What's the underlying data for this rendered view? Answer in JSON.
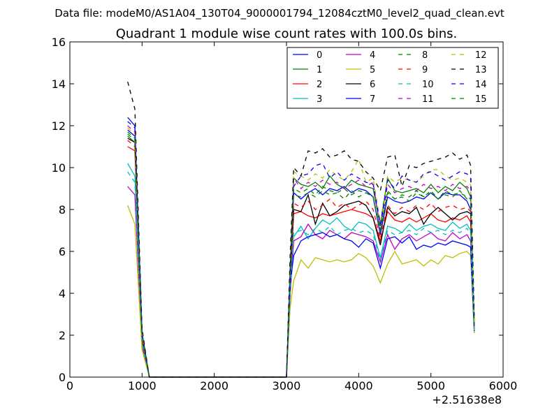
{
  "figure": {
    "suptitle": "Data file: modeM0/AS1A04_130T04_9000001794_12084cztM0_level2_quad_clean.evt"
  },
  "chart_data": {
    "type": "line",
    "title": "Quadrant 1 module wise count rates with 100.0s bins.",
    "xlabel": "",
    "ylabel": "",
    "x_offset_label": "+2.51638e8",
    "xlim": [
      0,
      6000
    ],
    "ylim": [
      0,
      16
    ],
    "xticks": [
      0,
      1000,
      2000,
      3000,
      4000,
      5000,
      6000
    ],
    "yticks": [
      0,
      2,
      4,
      6,
      8,
      10,
      12,
      14,
      16
    ],
    "grid": false,
    "legend": {
      "placement": "top-right",
      "columns": 4
    },
    "x": [
      800,
      900,
      1000,
      1100,
      1200,
      1300,
      1400,
      1500,
      1600,
      1700,
      1800,
      1900,
      2000,
      2100,
      2200,
      2300,
      2400,
      2500,
      2600,
      2700,
      2800,
      2900,
      3000,
      3050,
      3100,
      3200,
      3300,
      3400,
      3500,
      3600,
      3700,
      3800,
      3900,
      4000,
      4100,
      4200,
      4300,
      4400,
      4500,
      4600,
      4700,
      4800,
      4900,
      5000,
      5100,
      5200,
      5300,
      5400,
      5500,
      5550,
      5600
    ],
    "series": [
      {
        "name": "0",
        "color": "#0000ff",
        "dash": "solid",
        "values": [
          11.8,
          11.5,
          2.0,
          0,
          0,
          0,
          0,
          0,
          0,
          0,
          0,
          0,
          0,
          0,
          0,
          0,
          0,
          0,
          0,
          0,
          0,
          0,
          0,
          4.8,
          8.8,
          8.5,
          8.8,
          9.0,
          8.7,
          9.0,
          8.9,
          9.1,
          8.8,
          9.0,
          8.9,
          8.6,
          6.8,
          8.6,
          8.4,
          8.3,
          8.4,
          8.6,
          8.5,
          8.8,
          8.5,
          8.8,
          8.7,
          8.7,
          8.4,
          8.0,
          2.5
        ]
      },
      {
        "name": "1",
        "color": "#008000",
        "dash": "solid",
        "values": [
          11.5,
          11.2,
          2.0,
          0,
          0,
          0,
          0,
          0,
          0,
          0,
          0,
          0,
          0,
          0,
          0,
          0,
          0,
          0,
          0,
          0,
          0,
          0,
          0,
          5.0,
          9.5,
          9.2,
          9.1,
          9.3,
          9.0,
          9.6,
          9.2,
          9.0,
          9.4,
          9.2,
          9.1,
          9.0,
          7.2,
          9.5,
          8.9,
          8.8,
          8.9,
          9.0,
          8.8,
          9.2,
          8.8,
          9.1,
          8.9,
          9.3,
          9.0,
          8.6,
          2.6
        ]
      },
      {
        "name": "2",
        "color": "#ff0000",
        "dash": "solid",
        "values": [
          11.0,
          10.8,
          1.8,
          0,
          0,
          0,
          0,
          0,
          0,
          0,
          0,
          0,
          0,
          0,
          0,
          0,
          0,
          0,
          0,
          0,
          0,
          0,
          0,
          4.6,
          7.8,
          7.9,
          7.7,
          7.6,
          7.8,
          7.7,
          7.8,
          7.9,
          8.0,
          7.9,
          7.8,
          7.6,
          6.5,
          7.9,
          7.5,
          7.4,
          7.6,
          7.4,
          7.6,
          7.8,
          7.5,
          7.4,
          7.6,
          7.5,
          7.7,
          7.4,
          2.3
        ]
      },
      {
        "name": "3",
        "color": "#00bfbf",
        "dash": "solid",
        "values": [
          10.2,
          9.6,
          1.6,
          0,
          0,
          0,
          0,
          0,
          0,
          0,
          0,
          0,
          0,
          0,
          0,
          0,
          0,
          0,
          0,
          0,
          0,
          0,
          0,
          4.2,
          6.7,
          7.2,
          6.6,
          7.1,
          7.5,
          7.3,
          7.6,
          7.2,
          7.0,
          7.4,
          7.3,
          7.0,
          5.7,
          7.2,
          7.1,
          6.9,
          7.3,
          7.0,
          7.2,
          7.3,
          7.1,
          7.0,
          7.4,
          7.1,
          7.3,
          7.0,
          2.2
        ]
      },
      {
        "name": "4",
        "color": "#bf00bf",
        "dash": "solid",
        "values": [
          9.1,
          8.7,
          1.5,
          0,
          0,
          0,
          0,
          0,
          0,
          0,
          0,
          0,
          0,
          0,
          0,
          0,
          0,
          0,
          0,
          0,
          0,
          0,
          0,
          3.9,
          6.5,
          6.7,
          7.3,
          6.8,
          6.6,
          7.0,
          6.8,
          6.6,
          6.9,
          6.8,
          6.7,
          6.5,
          5.5,
          6.8,
          6.1,
          6.6,
          6.8,
          6.5,
          6.7,
          6.9,
          6.6,
          6.5,
          6.9,
          6.6,
          6.8,
          6.5,
          2.1
        ]
      },
      {
        "name": "5",
        "color": "#bfbf00",
        "dash": "solid",
        "values": [
          8.2,
          7.3,
          1.3,
          0,
          0,
          0,
          0,
          0,
          0,
          0,
          0,
          0,
          0,
          0,
          0,
          0,
          0,
          0,
          0,
          0,
          0,
          0,
          0,
          3.3,
          4.6,
          5.6,
          5.2,
          5.7,
          5.6,
          5.5,
          5.6,
          5.5,
          5.6,
          5.9,
          5.7,
          5.3,
          4.5,
          5.4,
          6.0,
          5.4,
          5.5,
          5.6,
          5.3,
          5.6,
          5.4,
          5.8,
          5.7,
          5.9,
          6.0,
          5.8,
          2.1
        ]
      },
      {
        "name": "6",
        "color": "#000000",
        "dash": "solid",
        "values": [
          11.4,
          11.2,
          1.9,
          0,
          0,
          0,
          0,
          0,
          0,
          0,
          0,
          0,
          0,
          0,
          0,
          0,
          0,
          0,
          0,
          0,
          0,
          0,
          0,
          4.7,
          8.0,
          7.9,
          8.7,
          7.3,
          8.3,
          7.7,
          7.9,
          8.2,
          8.3,
          8.4,
          8.2,
          7.6,
          6.3,
          8.1,
          7.7,
          7.9,
          7.8,
          8.1,
          7.3,
          7.8,
          8.1,
          7.8,
          7.5,
          7.8,
          7.9,
          7.8,
          2.4
        ]
      },
      {
        "name": "7",
        "color": "#0000ff",
        "dash": "solid",
        "values": [
          12.4,
          12.0,
          2.1,
          0,
          0,
          0,
          0,
          0,
          0,
          0,
          0,
          0,
          0,
          0,
          0,
          0,
          0,
          0,
          0,
          0,
          0,
          0,
          0,
          4.4,
          5.8,
          6.5,
          6.7,
          6.8,
          6.9,
          6.7,
          6.8,
          6.6,
          6.5,
          6.2,
          6.6,
          6.4,
          5.2,
          6.6,
          6.7,
          6.4,
          6.7,
          6.1,
          6.3,
          6.2,
          6.4,
          6.3,
          6.5,
          6.4,
          6.3,
          6.2,
          2.2
        ]
      },
      {
        "name": "8",
        "color": "#008000",
        "dash": "dashed",
        "values": [
          11.6,
          11.3,
          2.0,
          0,
          0,
          0,
          0,
          0,
          0,
          0,
          0,
          0,
          0,
          0,
          0,
          0,
          0,
          0,
          0,
          0,
          0,
          0,
          0,
          4.9,
          8.7,
          8.6,
          8.8,
          8.6,
          8.9,
          8.7,
          8.8,
          8.5,
          8.9,
          8.6,
          8.8,
          8.6,
          6.9,
          8.8,
          8.5,
          8.6,
          8.4,
          8.8,
          8.6,
          8.9,
          8.5,
          8.7,
          8.6,
          8.9,
          8.5,
          8.4,
          2.5
        ]
      },
      {
        "name": "9",
        "color": "#ff0000",
        "dash": "dashed",
        "values": [
          11.3,
          11.0,
          1.9,
          0,
          0,
          0,
          0,
          0,
          0,
          0,
          0,
          0,
          0,
          0,
          0,
          0,
          0,
          0,
          0,
          0,
          0,
          0,
          0,
          4.7,
          8.3,
          8.1,
          8.4,
          8.0,
          8.2,
          8.5,
          8.1,
          8.3,
          8.0,
          8.2,
          8.4,
          8.0,
          6.6,
          8.2,
          7.8,
          8.1,
          7.9,
          8.2,
          8.0,
          8.3,
          7.9,
          8.1,
          8.2,
          8.0,
          8.1,
          7.9,
          2.4
        ]
      },
      {
        "name": "10",
        "color": "#00bfbf",
        "dash": "dashed",
        "values": [
          9.8,
          9.3,
          1.6,
          0,
          0,
          0,
          0,
          0,
          0,
          0,
          0,
          0,
          0,
          0,
          0,
          0,
          0,
          0,
          0,
          0,
          0,
          0,
          0,
          4.0,
          6.9,
          7.0,
          6.8,
          7.1,
          6.9,
          7.2,
          6.8,
          7.0,
          7.1,
          6.9,
          7.0,
          6.8,
          5.6,
          7.0,
          6.8,
          6.9,
          7.0,
          6.8,
          7.1,
          6.9,
          7.0,
          6.8,
          7.0,
          6.9,
          7.1,
          6.8,
          2.2
        ]
      },
      {
        "name": "11",
        "color": "#bf00bf",
        "dash": "dashed",
        "values": [
          12.0,
          11.7,
          2.0,
          0,
          0,
          0,
          0,
          0,
          0,
          0,
          0,
          0,
          0,
          0,
          0,
          0,
          0,
          0,
          0,
          0,
          0,
          0,
          0,
          5.2,
          9.5,
          9.0,
          9.3,
          9.1,
          9.4,
          9.2,
          9.3,
          9.0,
          9.2,
          9.4,
          9.1,
          9.3,
          7.0,
          9.2,
          8.8,
          9.0,
          9.1,
          8.9,
          9.2,
          9.0,
          9.1,
          8.9,
          9.2,
          9.0,
          9.1,
          8.9,
          2.6
        ]
      },
      {
        "name": "12",
        "color": "#bfbf00",
        "dash": "dashed",
        "values": [
          11.9,
          11.6,
          2.1,
          0,
          0,
          0,
          0,
          0,
          0,
          0,
          0,
          0,
          0,
          0,
          0,
          0,
          0,
          0,
          0,
          0,
          0,
          0,
          0,
          5.3,
          9.8,
          9.6,
          9.4,
          9.7,
          9.5,
          9.9,
          9.6,
          9.4,
          9.8,
          10.4,
          9.3,
          9.5,
          7.4,
          9.6,
          9.3,
          9.5,
          9.4,
          9.3,
          9.6,
          9.9,
          9.9,
          9.6,
          9.4,
          9.5,
          9.3,
          9.2,
          2.6
        ]
      },
      {
        "name": "13",
        "color": "#000000",
        "dash": "dashed",
        "values": [
          14.1,
          12.8,
          2.3,
          0,
          0,
          0,
          0,
          0,
          0,
          0,
          0,
          0,
          0,
          0,
          0,
          0,
          0,
          0,
          0,
          0,
          0,
          0,
          0,
          5.8,
          10.0,
          9.6,
          10.8,
          10.7,
          10.9,
          10.5,
          10.6,
          10.8,
          10.4,
          10.3,
          9.8,
          9.5,
          8.9,
          10.5,
          10.6,
          9.1,
          10.1,
          10.0,
          10.2,
          10.3,
          10.4,
          10.5,
          10.7,
          10.4,
          10.6,
          10.1,
          2.9
        ]
      },
      {
        "name": "14",
        "color": "#0000ff",
        "dash": "dashed",
        "values": [
          12.2,
          11.9,
          2.1,
          0,
          0,
          0,
          0,
          0,
          0,
          0,
          0,
          0,
          0,
          0,
          0,
          0,
          0,
          0,
          0,
          0,
          0,
          0,
          0,
          5.1,
          9.1,
          9.6,
          9.7,
          10.1,
          10.2,
          9.5,
          9.8,
          9.4,
          9.7,
          9.5,
          9.3,
          9.2,
          7.3,
          9.4,
          9.0,
          9.6,
          9.4,
          9.3,
          9.7,
          9.8,
          9.6,
          9.4,
          9.6,
          9.8,
          9.7,
          9.5,
          2.7
        ]
      },
      {
        "name": "15",
        "color": "#008000",
        "dash": "dashed",
        "values": [
          11.7,
          11.4,
          2.0,
          0,
          0,
          0,
          0,
          0,
          0,
          0,
          0,
          0,
          0,
          0,
          0,
          0,
          0,
          0,
          0,
          0,
          0,
          0,
          0,
          4.9,
          9.0,
          8.8,
          9.0,
          8.7,
          9.1,
          8.9,
          8.8,
          9.0,
          8.7,
          8.9,
          8.8,
          8.6,
          7.0,
          8.9,
          8.5,
          8.7,
          8.6,
          8.9,
          8.6,
          8.8,
          8.5,
          8.9,
          8.7,
          8.8,
          8.6,
          8.5,
          2.5
        ]
      }
    ]
  }
}
